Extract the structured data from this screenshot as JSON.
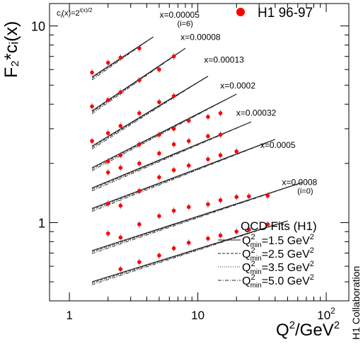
{
  "chart_data": {
    "type": "scatter",
    "scale": {
      "x": "log",
      "y": "log"
    },
    "xlim": [
      0.7,
      150
    ],
    "ylim": [
      0.4,
      13
    ],
    "x_ticks": [
      {
        "value": 1,
        "label": "1"
      },
      {
        "value": 10,
        "label": "10"
      },
      {
        "value": 100,
        "label": "10",
        "sup": "2"
      }
    ],
    "y_ticks": [
      {
        "value": 1,
        "label": "1"
      },
      {
        "value": 10,
        "label": "10"
      }
    ],
    "xlabel": {
      "main": "Q",
      "sup": "2",
      "rest": "/GeV",
      "sup2": "2"
    },
    "ylabel": "F₂*cᵢ(x)",
    "formula": "cᵢ(x) = 2^{i(x)/2}",
    "formula_parts": {
      "base": "c",
      "sub": "i",
      "rest": "(x)=2",
      "exp": "i(x)/2"
    },
    "legend_data": {
      "label": "H1 96-97",
      "color": "#ff0000"
    },
    "collaboration": "H1 Collaboration",
    "fit_legend": {
      "title": "QCD Fits (H1)",
      "items": [
        {
          "prefix": "Q",
          "sup": "2",
          "sub": "min",
          "value": "=1.5 GeV",
          "unit_sup": "2",
          "style": "solid"
        },
        {
          "prefix": "Q",
          "sup": "2",
          "sub": "min",
          "value": "=2.5 GeV",
          "unit_sup": "2",
          "style": "dashed"
        },
        {
          "prefix": "Q",
          "sup": "2",
          "sub": "min",
          "value": "=3.5 GeV",
          "unit_sup": "2",
          "style": "dotted"
        },
        {
          "prefix": "Q",
          "sup": "2",
          "sub": "min",
          "value": "=5.0 GeV",
          "unit_sup": "2",
          "style": "dashdot"
        }
      ]
    },
    "marker_color": "#ff0000",
    "series": [
      {
        "name": "x=0.00005",
        "note": "(i=6)",
        "label_anchor": [
          7.2,
          11.0
        ],
        "points": [
          [
            1.5,
            5.8
          ],
          [
            2.0,
            6.5
          ],
          [
            2.5,
            6.9
          ],
          [
            3.5,
            7.7
          ]
        ],
        "fit": [
          [
            1.5,
            5.5
          ],
          [
            4.5,
            8.8
          ]
        ]
      },
      {
        "name": "x=0.00008",
        "label_anchor": [
          10.5,
          8.5
        ],
        "points": [
          [
            1.5,
            3.9
          ],
          [
            2.0,
            4.2
          ],
          [
            2.5,
            4.6
          ],
          [
            3.5,
            5.3
          ],
          [
            5.0,
            6.0
          ],
          [
            6.5,
            7.0
          ]
        ],
        "fit": [
          [
            1.5,
            3.7
          ],
          [
            8.0,
            7.7
          ]
        ]
      },
      {
        "name": "x=0.00013",
        "label_anchor": [
          16.0,
          6.5
        ],
        "points": [
          [
            1.5,
            2.6
          ],
          [
            2.0,
            2.85
          ],
          [
            2.5,
            3.1
          ],
          [
            3.5,
            3.6
          ],
          [
            5.0,
            4.1
          ],
          [
            6.5,
            4.4
          ]
        ],
        "fit": [
          [
            1.5,
            2.45
          ],
          [
            12.0,
            5.55
          ]
        ]
      },
      {
        "name": "x=0.0002",
        "label_anchor": [
          20.5,
          4.8
        ],
        "points": [
          [
            2.0,
            2.05
          ],
          [
            2.5,
            2.2
          ],
          [
            3.5,
            2.5
          ],
          [
            5.0,
            2.8
          ],
          [
            6.5,
            3.0
          ],
          [
            8.5,
            3.3
          ],
          [
            12.0,
            3.45
          ],
          [
            15.0,
            3.6
          ]
        ],
        "fit": [
          [
            1.5,
            1.9
          ],
          [
            20.0,
            4.5
          ]
        ]
      },
      {
        "name": "x=0.00032",
        "label_anchor": [
          28.5,
          3.5
        ],
        "points": [
          [
            2.0,
            1.8
          ],
          [
            2.5,
            1.9
          ],
          [
            3.5,
            2.0
          ],
          [
            5.0,
            2.25
          ],
          [
            6.5,
            2.5
          ],
          [
            8.5,
            2.6
          ],
          [
            12.0,
            2.75
          ],
          [
            15.0,
            2.8
          ]
        ],
        "fit": [
          [
            1.5,
            1.5
          ],
          [
            26.0,
            3.25
          ]
        ]
      },
      {
        "name": "x=0.0005",
        "label_anchor": [
          42.0,
          2.4
        ],
        "points": [
          [
            2.0,
            1.25
          ],
          [
            2.5,
            1.22
          ],
          [
            3.5,
            1.45
          ],
          [
            5.0,
            1.7
          ],
          [
            6.5,
            1.85
          ],
          [
            8.5,
            1.95
          ],
          [
            12.0,
            2.1
          ],
          [
            15.0,
            2.2
          ],
          [
            20.0,
            2.3
          ]
        ],
        "fit": [
          [
            1.5,
            1.18
          ],
          [
            40.0,
            2.65
          ]
        ]
      },
      {
        "name": "x=0.0008",
        "note": "(i=0)",
        "label_anchor": [
          62.0,
          1.55
        ],
        "points": [
          [
            2.0,
            0.88
          ],
          [
            2.5,
            0.84
          ],
          [
            3.5,
            0.98
          ],
          [
            5.0,
            1.08
          ],
          [
            6.5,
            1.15
          ],
          [
            8.5,
            1.2
          ],
          [
            12.0,
            1.24
          ],
          [
            15.0,
            1.3
          ],
          [
            20.0,
            1.35
          ],
          [
            25.0,
            1.36
          ],
          [
            35.0,
            1.37
          ]
        ],
        "fit": [
          [
            1.5,
            0.72
          ],
          [
            65.0,
            1.6
          ]
        ]
      },
      {
        "name": "",
        "points": [
          [
            2.5,
            0.58
          ],
          [
            3.5,
            0.63
          ],
          [
            5.0,
            0.68
          ],
          [
            6.5,
            0.74
          ],
          [
            8.5,
            0.79
          ],
          [
            12.0,
            0.83
          ],
          [
            15.0,
            0.86
          ],
          [
            20.0,
            0.9
          ],
          [
            25.0,
            0.92
          ],
          [
            35.0,
            0.98
          ]
        ],
        "fit": [
          [
            1.5,
            0.5
          ],
          [
            50.0,
            1.02
          ]
        ]
      }
    ]
  }
}
